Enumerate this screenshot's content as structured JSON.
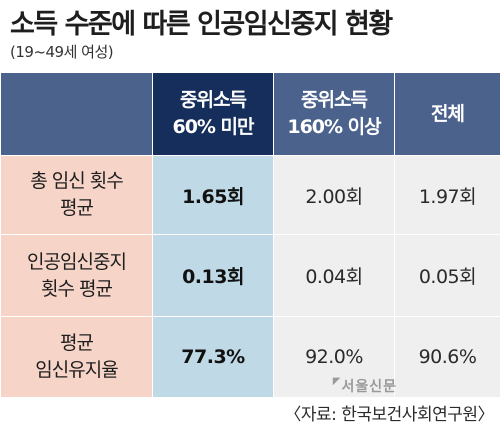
{
  "title": "소득 수준에 따른 인공임신중지 현황",
  "subtitle": "(19~49세 여성)",
  "table": {
    "columns": [
      "",
      "중위소득\n60% 미만",
      "중위소득\n160% 이상",
      "전체"
    ],
    "rows": [
      {
        "label": "총 임신 횟수\n평균",
        "values": [
          "1.65회",
          "2.00회",
          "1.97회"
        ]
      },
      {
        "label": "인공임신중지\n횟수 평균",
        "values": [
          "0.13회",
          "0.04회",
          "0.05회"
        ]
      },
      {
        "label": "평균\n임신유지율",
        "values": [
          "77.3%",
          "92.0%",
          "90.6%"
        ]
      }
    ]
  },
  "colors": {
    "header": "#4b628c",
    "header_highlight": "#162e5b",
    "row_label_bg": "#f6d5c8",
    "cell_bg": "#efefef",
    "cell_highlight": "#bfd9e6"
  },
  "watermark": "서울신문",
  "source": "〈자료: 한국보건사회연구원〉"
}
